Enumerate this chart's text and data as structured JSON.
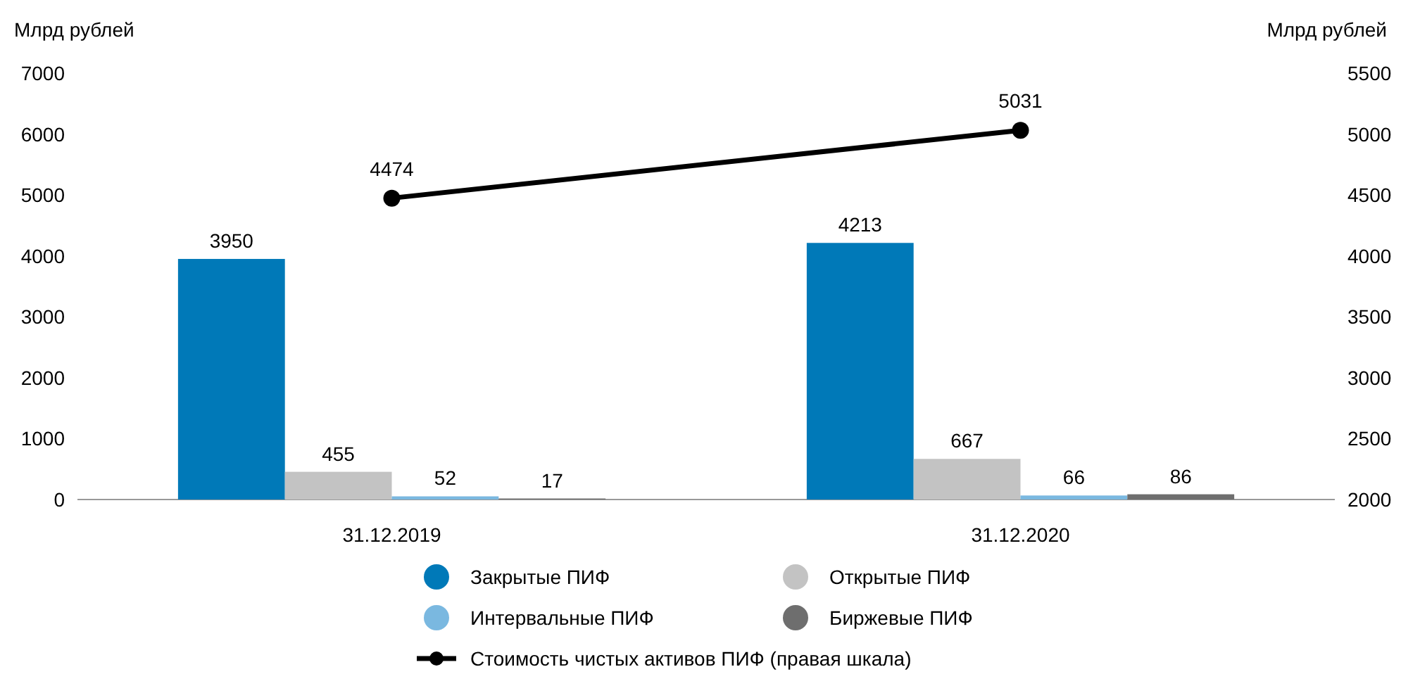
{
  "chart_data": {
    "type": "bar",
    "ylabel": "Млрд рублей",
    "y2label": "Млрд рублей",
    "categories": [
      "31.12.2019",
      "31.12.2020"
    ],
    "series": [
      {
        "name": "Закрытые ПИФ",
        "color": "#0079b8",
        "values": [
          3950,
          4213
        ]
      },
      {
        "name": "Открытые ПИФ",
        "color": "#c3c3c3",
        "values": [
          455,
          667
        ]
      },
      {
        "name": "Интервальные ПИФ",
        "color": "#7ab8e0",
        "values": [
          52,
          66
        ]
      },
      {
        "name": "Биржевые ПИФ",
        "color": "#6e6e6e",
        "values": [
          17,
          86
        ]
      },
      {
        "name": "Стоимость чистых активов ПИФ (правая шкала)",
        "type": "line",
        "axis": "y2",
        "color": "#000000",
        "values": [
          4474,
          5031
        ]
      }
    ],
    "ylim": [
      0,
      7000
    ],
    "yticks": [
      0,
      1000,
      2000,
      3000,
      4000,
      5000,
      6000,
      7000
    ],
    "y2lim": [
      2000,
      5500
    ],
    "y2ticks": [
      2000,
      2500,
      3000,
      3500,
      4000,
      4500,
      5000,
      5500
    ],
    "data_labels": true,
    "marker": "circle",
    "grid": false,
    "legend": "bottom"
  }
}
